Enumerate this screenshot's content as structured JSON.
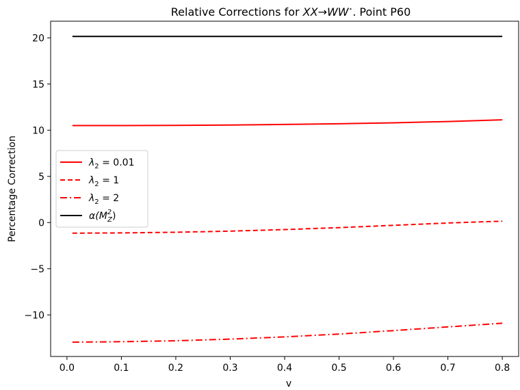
{
  "chart_data": {
    "type": "line",
    "title_prefix": "Relative Corrections for ",
    "title_math": "XX→WW",
    "title_star": "⋆",
    "title_suffix": ". Point P60",
    "xlabel": "v",
    "ylabel": "Percentage Correction",
    "xlim": [
      -0.03,
      0.83
    ],
    "ylim": [
      -14.5,
      21.8
    ],
    "xticks": [
      0.0,
      0.1,
      0.2,
      0.3,
      0.4,
      0.5,
      0.6,
      0.7,
      0.8
    ],
    "xtick_labels": [
      "0.0",
      "0.1",
      "0.2",
      "0.3",
      "0.4",
      "0.5",
      "0.6",
      "0.7",
      "0.8"
    ],
    "yticks": [
      -10,
      -5,
      0,
      5,
      10,
      15,
      20
    ],
    "ytick_labels": [
      "−10",
      "−5",
      "0",
      "5",
      "10",
      "15",
      "20"
    ],
    "grid": false,
    "legend_position": "center-left",
    "x": [
      0.01,
      0.1,
      0.2,
      0.3,
      0.4,
      0.5,
      0.6,
      0.7,
      0.8
    ],
    "series": [
      {
        "name": "λ₂ = 0.01",
        "legend_main": "λ",
        "legend_sub": "2",
        "legend_rest": " = 0.01",
        "color": "#ff0000",
        "style": "solid",
        "values": [
          10.5,
          10.5,
          10.52,
          10.56,
          10.62,
          10.7,
          10.8,
          10.94,
          11.12
        ]
      },
      {
        "name": "λ₂ = 1",
        "legend_main": "λ",
        "legend_sub": "2",
        "legend_rest": " = 1",
        "color": "#ff0000",
        "style": "dashed",
        "values": [
          -1.15,
          -1.12,
          -1.05,
          -0.93,
          -0.76,
          -0.55,
          -0.3,
          -0.05,
          0.15
        ]
      },
      {
        "name": "λ₂ = 2",
        "legend_main": "λ",
        "legend_sub": "2",
        "legend_rest": " = 2",
        "color": "#ff0000",
        "style": "dashdot",
        "values": [
          -12.95,
          -12.9,
          -12.8,
          -12.62,
          -12.38,
          -12.07,
          -11.7,
          -11.3,
          -10.9
        ]
      },
      {
        "name": "α(M_Z²)",
        "legend_main": "α(M",
        "legend_sub": "Z",
        "legend_sup": "2",
        "legend_rest": ")",
        "color": "#000000",
        "style": "solid",
        "values": [
          20.15,
          20.15,
          20.15,
          20.15,
          20.15,
          20.15,
          20.15,
          20.15,
          20.15
        ]
      }
    ]
  }
}
